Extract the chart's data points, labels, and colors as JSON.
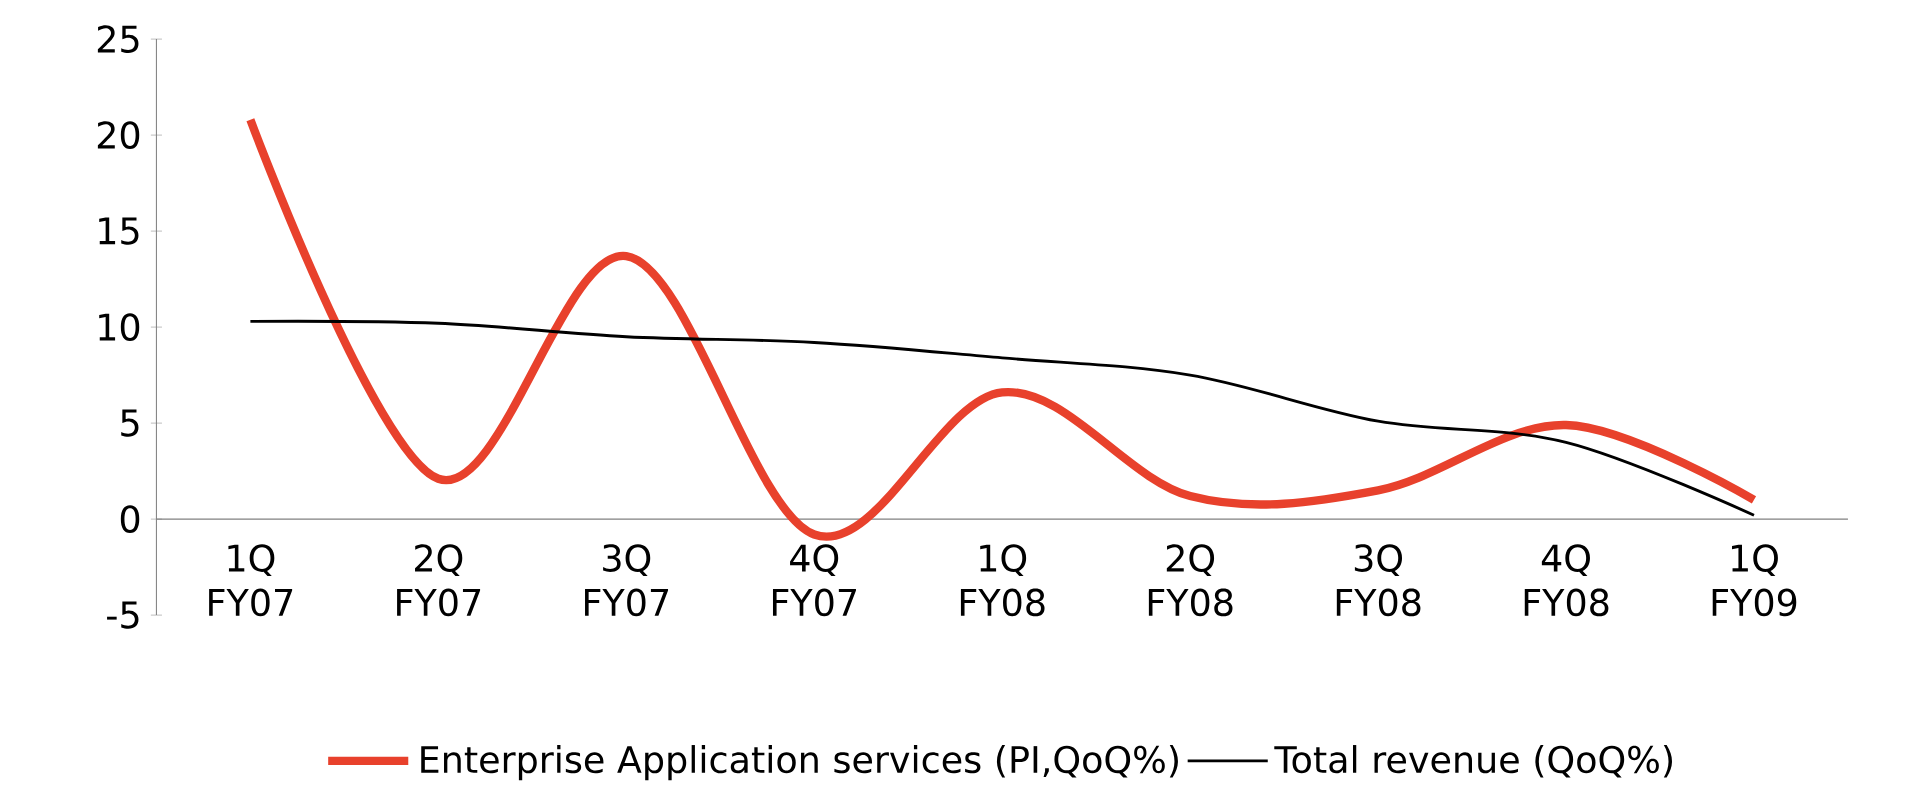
{
  "chart_data": {
    "type": "line",
    "categories": [
      "1Q FY07",
      "2Q FY07",
      "3Q FY07",
      "4Q FY07",
      "1Q FY08",
      "2Q FY08",
      "3Q FY08",
      "4Q FY08",
      "1Q FY09"
    ],
    "series": [
      {
        "name": "Enterprise Application services (PI,QoQ%)",
        "color": "#e8412c",
        "values": [
          20.8,
          2.1,
          13.7,
          -0.8,
          6.6,
          1.2,
          1.5,
          4.9,
          1.0
        ]
      },
      {
        "name": "Total revenue (QoQ%)",
        "color": "#000000",
        "values": [
          10.3,
          10.2,
          9.5,
          9.2,
          8.4,
          7.5,
          5.1,
          4.0,
          0.2
        ]
      }
    ],
    "ylim": [
      -5,
      25
    ],
    "yticks": [
      -5,
      0,
      5,
      10,
      15,
      20,
      25
    ],
    "grid": false,
    "legend": "bottom",
    "marker": "none",
    "line_style": "solid"
  }
}
